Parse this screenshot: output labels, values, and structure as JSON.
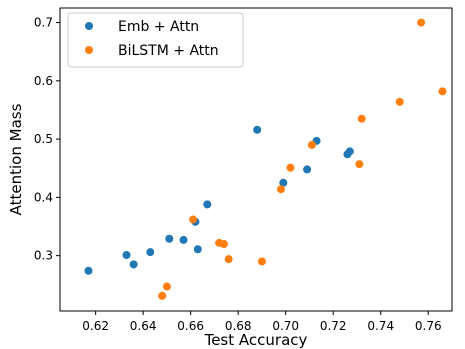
{
  "chart_data": {
    "type": "scatter",
    "title": "",
    "xlabel": "Test Accuracy",
    "ylabel": "Attention Mass",
    "xlim": [
      0.605,
      0.77
    ],
    "ylim": [
      0.205,
      0.725
    ],
    "xticks": [
      0.62,
      0.64,
      0.66,
      0.68,
      0.7,
      0.72,
      0.74,
      0.76
    ],
    "xtick_labels": [
      "0.62",
      "0.64",
      "0.66",
      "0.68",
      "0.70",
      "0.72",
      "0.74",
      "0.76"
    ],
    "yticks": [
      0.3,
      0.4,
      0.5,
      0.6,
      0.7
    ],
    "ytick_labels": [
      "0.3",
      "0.4",
      "0.5",
      "0.6",
      "0.7"
    ],
    "grid": false,
    "legend_position": "top-left",
    "series": [
      {
        "name": "Emb + Attn",
        "color": "#1f77b4",
        "points": [
          {
            "x": 0.617,
            "y": 0.274
          },
          {
            "x": 0.633,
            "y": 0.301
          },
          {
            "x": 0.636,
            "y": 0.285
          },
          {
            "x": 0.643,
            "y": 0.306
          },
          {
            "x": 0.651,
            "y": 0.329
          },
          {
            "x": 0.657,
            "y": 0.327
          },
          {
            "x": 0.662,
            "y": 0.358
          },
          {
            "x": 0.663,
            "y": 0.311
          },
          {
            "x": 0.667,
            "y": 0.388
          },
          {
            "x": 0.688,
            "y": 0.516
          },
          {
            "x": 0.699,
            "y": 0.425
          },
          {
            "x": 0.709,
            "y": 0.448
          },
          {
            "x": 0.713,
            "y": 0.497
          },
          {
            "x": 0.726,
            "y": 0.474
          },
          {
            "x": 0.727,
            "y": 0.479
          }
        ]
      },
      {
        "name": "BiLSTM + Attn",
        "color": "#ff7f0e",
        "points": [
          {
            "x": 0.648,
            "y": 0.231
          },
          {
            "x": 0.65,
            "y": 0.247
          },
          {
            "x": 0.661,
            "y": 0.362
          },
          {
            "x": 0.672,
            "y": 0.322
          },
          {
            "x": 0.674,
            "y": 0.32
          },
          {
            "x": 0.676,
            "y": 0.294
          },
          {
            "x": 0.69,
            "y": 0.29
          },
          {
            "x": 0.698,
            "y": 0.414
          },
          {
            "x": 0.702,
            "y": 0.451
          },
          {
            "x": 0.711,
            "y": 0.49
          },
          {
            "x": 0.731,
            "y": 0.457
          },
          {
            "x": 0.732,
            "y": 0.535
          },
          {
            "x": 0.748,
            "y": 0.564
          },
          {
            "x": 0.757,
            "y": 0.7
          },
          {
            "x": 0.766,
            "y": 0.582
          }
        ]
      }
    ]
  }
}
